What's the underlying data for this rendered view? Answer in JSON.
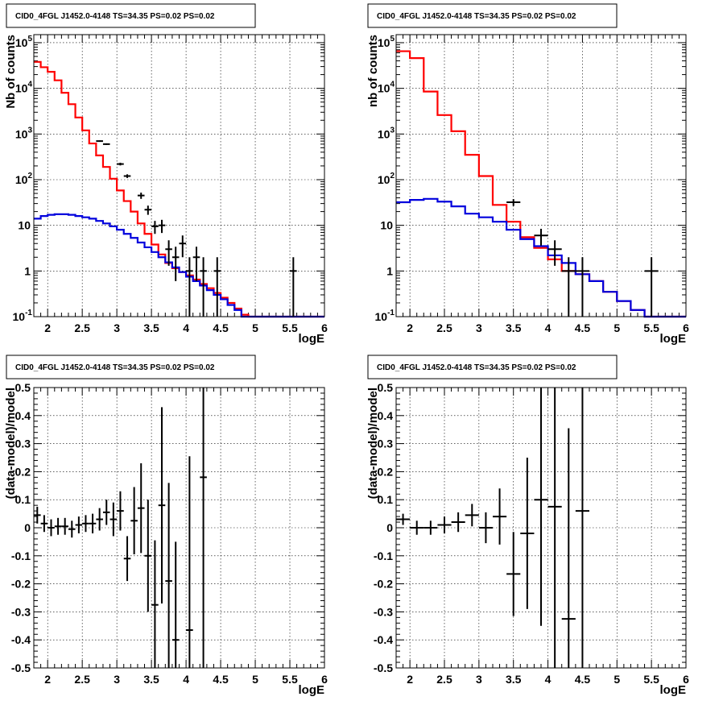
{
  "chart_data": [
    {
      "type": "line",
      "title": "CID0_4FGL J1452.0-4148 TS=34.35 PS=0.02 PS=0.02",
      "xlabel": "logE",
      "ylabel": "Nb of counts",
      "xlim": [
        1.8,
        6.0
      ],
      "ylim": [
        0.1,
        150000
      ],
      "yscale": "log",
      "grid": true,
      "x_ticks": [
        "2",
        "2.5",
        "3",
        "3.5",
        "4",
        "4.5",
        "5",
        "5.5",
        "6"
      ],
      "y_ticks": [
        "10^-1",
        "1",
        "10",
        "10^2",
        "10^3",
        "10^4",
        "10^5"
      ],
      "bin_edges": [
        1.8,
        1.9,
        2.0,
        2.1,
        2.2,
        2.3,
        2.4,
        2.5,
        2.6,
        2.7,
        2.8,
        2.9,
        3.0,
        3.1,
        3.2,
        3.3,
        3.4,
        3.5,
        3.6,
        3.7,
        3.8,
        3.9,
        4.0,
        4.1,
        4.2,
        4.3,
        4.4,
        4.5,
        4.6,
        4.7,
        4.8,
        4.9,
        5.0,
        5.1,
        5.2,
        5.3,
        5.4,
        5.5,
        5.6,
        5.7,
        5.8,
        5.9,
        6.0
      ],
      "series": [
        {
          "kind": "step",
          "color": "#ff0000",
          "values": [
            38000,
            29000,
            23000,
            15000,
            8000,
            4500,
            2300,
            1200,
            620,
            340,
            190,
            105,
            58,
            34,
            20,
            11,
            6.5,
            3.8,
            2.3,
            1.5,
            1.15,
            0.95,
            0.8,
            0.65,
            0.52,
            0.42,
            0.33,
            0.26,
            0.2,
            0.15,
            0.11,
            0.1,
            0.1,
            0.1,
            0.1,
            0.1,
            0.1,
            0.1,
            0.1,
            0.1,
            0.1,
            0.1
          ]
        },
        {
          "kind": "step",
          "color": "#0000dd",
          "values": [
            14,
            16,
            17,
            17.5,
            17.5,
            17,
            16,
            15,
            14,
            12.5,
            11,
            9.5,
            8,
            6.5,
            5.3,
            4.2,
            3.3,
            2.6,
            2.0,
            1.55,
            1.2,
            0.95,
            0.75,
            0.6,
            0.48,
            0.38,
            0.3,
            0.24,
            0.18,
            0.14,
            0.1,
            0.1,
            0.1,
            0.1,
            0.1,
            0.1,
            0.1,
            0.1,
            0.1,
            0.1,
            0.1,
            0.1
          ]
        }
      ],
      "points": [
        {
          "x": 2.75,
          "y": 700,
          "xerr": 0.05,
          "yerr": [
            26,
            26
          ]
        },
        {
          "x": 2.85,
          "y": 600,
          "xerr": 0.05,
          "yerr": [
            24,
            24
          ]
        },
        {
          "x": 3.05,
          "y": 220,
          "xerr": 0.05,
          "yerr": [
            15,
            15
          ]
        },
        {
          "x": 3.15,
          "y": 120,
          "xerr": 0.05,
          "yerr": [
            11,
            11
          ]
        },
        {
          "x": 3.35,
          "y": 45,
          "xerr": 0.05,
          "yerr": [
            7,
            7
          ]
        },
        {
          "x": 3.45,
          "y": 22,
          "xerr": 0.05,
          "yerr": [
            5,
            5
          ]
        },
        {
          "x": 3.55,
          "y": 9.5,
          "xerr": 0.05,
          "yerr": [
            3,
            3
          ]
        },
        {
          "x": 3.65,
          "y": 10,
          "xerr": 0.05,
          "yerr": [
            3.2,
            3.2
          ]
        },
        {
          "x": 3.75,
          "y": 3,
          "xerr": 0.05,
          "yerr": [
            1.7,
            1.7
          ]
        },
        {
          "x": 3.85,
          "y": 2,
          "xerr": 0.05,
          "yerr": [
            1.4,
            1.4
          ]
        },
        {
          "x": 3.95,
          "y": 4,
          "xerr": 0.05,
          "yerr": [
            2,
            2
          ]
        },
        {
          "x": 4.05,
          "y": 1,
          "xerr": 0.05,
          "yerr": [
            1,
            1
          ]
        },
        {
          "x": 4.15,
          "y": 2,
          "xerr": 0.05,
          "yerr": [
            1.4,
            1.4
          ]
        },
        {
          "x": 4.25,
          "y": 1,
          "xerr": 0.05,
          "yerr": [
            1,
            1
          ]
        },
        {
          "x": 4.45,
          "y": 1,
          "xerr": 0.05,
          "yerr": [
            1,
            1
          ]
        },
        {
          "x": 5.55,
          "y": 1,
          "xerr": 0.05,
          "yerr": [
            1,
            1
          ]
        }
      ]
    },
    {
      "type": "line",
      "title": "CID0_4FGL J1452.0-4148 TS=34.35 PS=0.02 PS=0.02",
      "xlabel": "logE",
      "ylabel": "nb of counts",
      "xlim": [
        1.8,
        6.0
      ],
      "ylim": [
        0.1,
        150000
      ],
      "yscale": "log",
      "grid": true,
      "x_ticks": [
        "2",
        "2.5",
        "3",
        "3.5",
        "4",
        "4.5",
        "5",
        "5.5",
        "6"
      ],
      "y_ticks": [
        "10^-1",
        "1",
        "10",
        "10^2",
        "10^3",
        "10^4",
        "10^5"
      ],
      "bin_edges": [
        1.8,
        2.0,
        2.2,
        2.4,
        2.6,
        2.8,
        3.0,
        3.2,
        3.4,
        3.6,
        3.8,
        4.0,
        4.2,
        4.4,
        4.6,
        4.8,
        5.0,
        5.2,
        5.4,
        5.6,
        5.8,
        6.0
      ],
      "series": [
        {
          "kind": "step",
          "color": "#ff0000",
          "values": [
            65000,
            46000,
            8500,
            2600,
            1150,
            350,
            120,
            28,
            12,
            5.5,
            3.2,
            1.8,
            1.0,
            0.85,
            0.6,
            0.35,
            0.22,
            0.14,
            0.1,
            0.1,
            0.1
          ]
        },
        {
          "kind": "step",
          "color": "#0000dd",
          "values": [
            32,
            36,
            38,
            33,
            26,
            18,
            15,
            12,
            8,
            5,
            3.5,
            2.2,
            1.5,
            0.85,
            0.6,
            0.35,
            0.22,
            0.14,
            0.1,
            0.1,
            0.1
          ]
        }
      ],
      "points": [
        {
          "x": 3.5,
          "y": 32,
          "xerr": 0.1,
          "yerr": [
            5.5,
            5.5
          ]
        },
        {
          "x": 3.9,
          "y": 6,
          "xerr": 0.1,
          "yerr": [
            2.4,
            2.4
          ]
        },
        {
          "x": 4.1,
          "y": 3,
          "xerr": 0.1,
          "yerr": [
            1.7,
            1.7
          ]
        },
        {
          "x": 4.3,
          "y": 1,
          "xerr": 0.1,
          "yerr": [
            1,
            1
          ]
        },
        {
          "x": 4.5,
          "y": 1,
          "xerr": 0.1,
          "yerr": [
            1,
            1
          ]
        },
        {
          "x": 5.5,
          "y": 1,
          "xerr": 0.1,
          "yerr": [
            1,
            1
          ]
        }
      ]
    },
    {
      "type": "scatter",
      "title": "CID0_4FGL J1452.0-4148 TS=34.35 PS=0.02 PS=0.02",
      "xlabel": "logE",
      "ylabel": "(data-model)/model",
      "xlim": [
        1.8,
        6.0
      ],
      "ylim": [
        -0.5,
        0.5
      ],
      "grid": true,
      "x_ticks": [
        "2",
        "2.5",
        "3",
        "3.5",
        "4",
        "4.5",
        "5",
        "5.5",
        "6"
      ],
      "y_ticks": [
        "-0.5",
        "-0.4",
        "-0.3",
        "-0.2",
        "-0.1",
        "0",
        "0.1",
        "0.2",
        "0.3",
        "0.4",
        "0.5"
      ],
      "points": [
        {
          "x": 1.85,
          "y": 0.045,
          "xerr": 0.05,
          "yerr": [
            0.03,
            0.03
          ]
        },
        {
          "x": 1.95,
          "y": 0.015,
          "xerr": 0.05,
          "yerr": [
            0.03,
            0.03
          ]
        },
        {
          "x": 2.05,
          "y": 0.0,
          "xerr": 0.05,
          "yerr": [
            0.03,
            0.03
          ]
        },
        {
          "x": 2.15,
          "y": 0.005,
          "xerr": 0.05,
          "yerr": [
            0.03,
            0.03
          ]
        },
        {
          "x": 2.25,
          "y": 0.005,
          "xerr": 0.05,
          "yerr": [
            0.03,
            0.03
          ]
        },
        {
          "x": 2.35,
          "y": -0.005,
          "xerr": 0.05,
          "yerr": [
            0.03,
            0.03
          ]
        },
        {
          "x": 2.45,
          "y": 0.01,
          "xerr": 0.05,
          "yerr": [
            0.03,
            0.03
          ]
        },
        {
          "x": 2.55,
          "y": 0.015,
          "xerr": 0.05,
          "yerr": [
            0.03,
            0.03
          ]
        },
        {
          "x": 2.65,
          "y": 0.015,
          "xerr": 0.05,
          "yerr": [
            0.035,
            0.035
          ]
        },
        {
          "x": 2.75,
          "y": 0.03,
          "xerr": 0.05,
          "yerr": [
            0.04,
            0.04
          ]
        },
        {
          "x": 2.85,
          "y": 0.055,
          "xerr": 0.05,
          "yerr": [
            0.045,
            0.045
          ]
        },
        {
          "x": 2.95,
          "y": 0.03,
          "xerr": 0.05,
          "yerr": [
            0.06,
            0.06
          ]
        },
        {
          "x": 3.05,
          "y": 0.06,
          "xerr": 0.05,
          "yerr": [
            0.07,
            0.07
          ]
        },
        {
          "x": 3.15,
          "y": -0.11,
          "xerr": 0.05,
          "yerr": [
            0.08,
            0.08
          ]
        },
        {
          "x": 3.25,
          "y": 0.025,
          "xerr": 0.05,
          "yerr": [
            0.12,
            0.12
          ]
        },
        {
          "x": 3.35,
          "y": 0.07,
          "xerr": 0.05,
          "yerr": [
            0.16,
            0.16
          ]
        },
        {
          "x": 3.45,
          "y": -0.1,
          "xerr": 0.05,
          "yerr": [
            0.2,
            0.2
          ]
        },
        {
          "x": 3.55,
          "y": -0.275,
          "xerr": 0.05,
          "yerr": [
            0.23,
            0.23
          ]
        },
        {
          "x": 3.65,
          "y": 0.08,
          "xerr": 0.05,
          "yerr": [
            0.35,
            0.35
          ]
        },
        {
          "x": 3.75,
          "y": -0.19,
          "xerr": 0.05,
          "yerr": [
            0.35,
            0.35
          ]
        },
        {
          "x": 3.85,
          "y": -0.4,
          "xerr": 0.05,
          "yerr": [
            0.35,
            0.35
          ]
        },
        {
          "x": 4.05,
          "y": -0.365,
          "xerr": 0.05,
          "yerr": [
            0.62,
            0.62
          ]
        },
        {
          "x": 4.25,
          "y": 0.18,
          "xerr": 0.05,
          "yerr": [
            1.0,
            1.0
          ]
        }
      ]
    },
    {
      "type": "scatter",
      "title": "CID0_4FGL J1452.0-4148 TS=34.35 PS=0.02 PS=0.02",
      "xlabel": "logE",
      "ylabel": "(data-model)/model",
      "xlim": [
        1.8,
        6.0
      ],
      "ylim": [
        -0.5,
        0.5
      ],
      "grid": true,
      "x_ticks": [
        "2",
        "2.5",
        "3",
        "3.5",
        "4",
        "4.5",
        "5",
        "5.5",
        "6"
      ],
      "y_ticks": [
        "-0.5",
        "-0.4",
        "-0.3",
        "-0.2",
        "-0.1",
        "0",
        "0.1",
        "0.2",
        "0.3",
        "0.4",
        "0.5"
      ],
      "points": [
        {
          "x": 1.9,
          "y": 0.03,
          "xerr": 0.1,
          "yerr": [
            0.02,
            0.02
          ]
        },
        {
          "x": 2.1,
          "y": 0.0,
          "xerr": 0.1,
          "yerr": [
            0.025,
            0.025
          ]
        },
        {
          "x": 2.3,
          "y": 0.0,
          "xerr": 0.1,
          "yerr": [
            0.025,
            0.025
          ]
        },
        {
          "x": 2.5,
          "y": 0.01,
          "xerr": 0.1,
          "yerr": [
            0.03,
            0.03
          ]
        },
        {
          "x": 2.7,
          "y": 0.02,
          "xerr": 0.1,
          "yerr": [
            0.035,
            0.035
          ]
        },
        {
          "x": 2.9,
          "y": 0.045,
          "xerr": 0.1,
          "yerr": [
            0.04,
            0.04
          ]
        },
        {
          "x": 3.1,
          "y": 0.0,
          "xerr": 0.1,
          "yerr": [
            0.055,
            0.055
          ]
        },
        {
          "x": 3.3,
          "y": 0.04,
          "xerr": 0.1,
          "yerr": [
            0.1,
            0.1
          ]
        },
        {
          "x": 3.5,
          "y": -0.165,
          "xerr": 0.1,
          "yerr": [
            0.15,
            0.15
          ]
        },
        {
          "x": 3.7,
          "y": -0.02,
          "xerr": 0.1,
          "yerr": [
            0.27,
            0.27
          ]
        },
        {
          "x": 3.9,
          "y": 0.1,
          "xerr": 0.1,
          "yerr": [
            0.45,
            0.45
          ]
        },
        {
          "x": 4.1,
          "y": 0.075,
          "xerr": 0.1,
          "yerr": [
            0.75,
            0.75
          ]
        },
        {
          "x": 4.3,
          "y": -0.325,
          "xerr": 0.1,
          "yerr": [
            0.68,
            0.68
          ]
        },
        {
          "x": 4.5,
          "y": 0.06,
          "xerr": 0.1,
          "yerr": [
            1.0,
            1.0
          ]
        }
      ]
    }
  ]
}
